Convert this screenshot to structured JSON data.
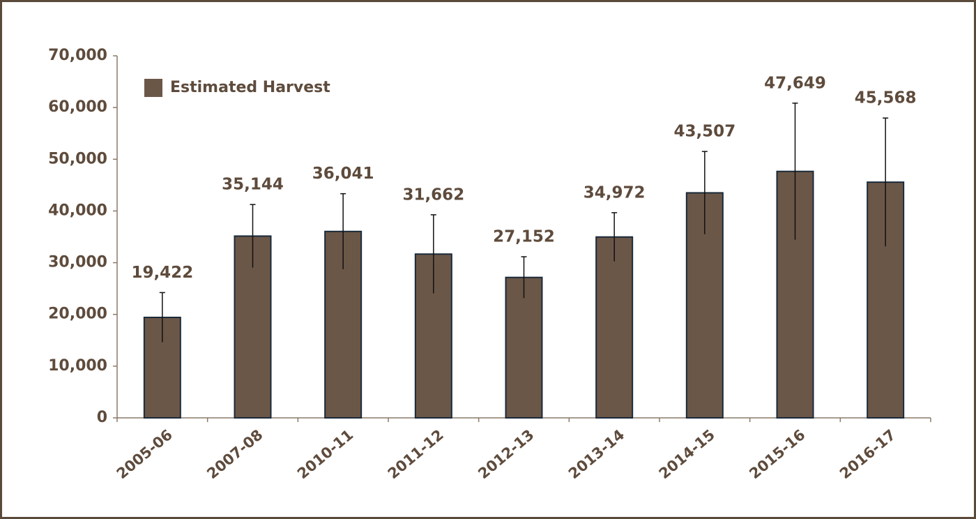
{
  "chart_data": {
    "type": "bar",
    "categories": [
      "2005-06",
      "2007-08",
      "2010-11",
      "2011-12",
      "2012-13",
      "2013-14",
      "2014-15",
      "2015-16",
      "2016-17"
    ],
    "series": [
      {
        "name": "Estimated Harvest",
        "color": "#6b5748",
        "values": [
          19422,
          35144,
          36041,
          31662,
          27152,
          34972,
          43507,
          47649,
          45568
        ],
        "value_labels": [
          "19,422",
          "35,144",
          "36,041",
          "31,662",
          "27,152",
          "34,972",
          "43,507",
          "47,649",
          "45,568"
        ],
        "errors": [
          4800,
          6100,
          7300,
          7600,
          4000,
          4700,
          8000,
          13200,
          12400
        ]
      }
    ],
    "ylim": [
      0,
      70000
    ],
    "yticks": [
      0,
      {
        "value": 10000,
        "label": "10,000"
      },
      {
        "value": 20000,
        "label": "20,000"
      },
      {
        "value": 30000,
        "label": "30,000"
      },
      {
        "value": 40000,
        "label": "40,000"
      },
      {
        "value": 50000,
        "label": "50,000"
      },
      {
        "value": 60000,
        "label": "60,000"
      },
      {
        "value": 70000,
        "label": "70,000"
      }
    ],
    "legend": "upper left",
    "grid": false
  }
}
